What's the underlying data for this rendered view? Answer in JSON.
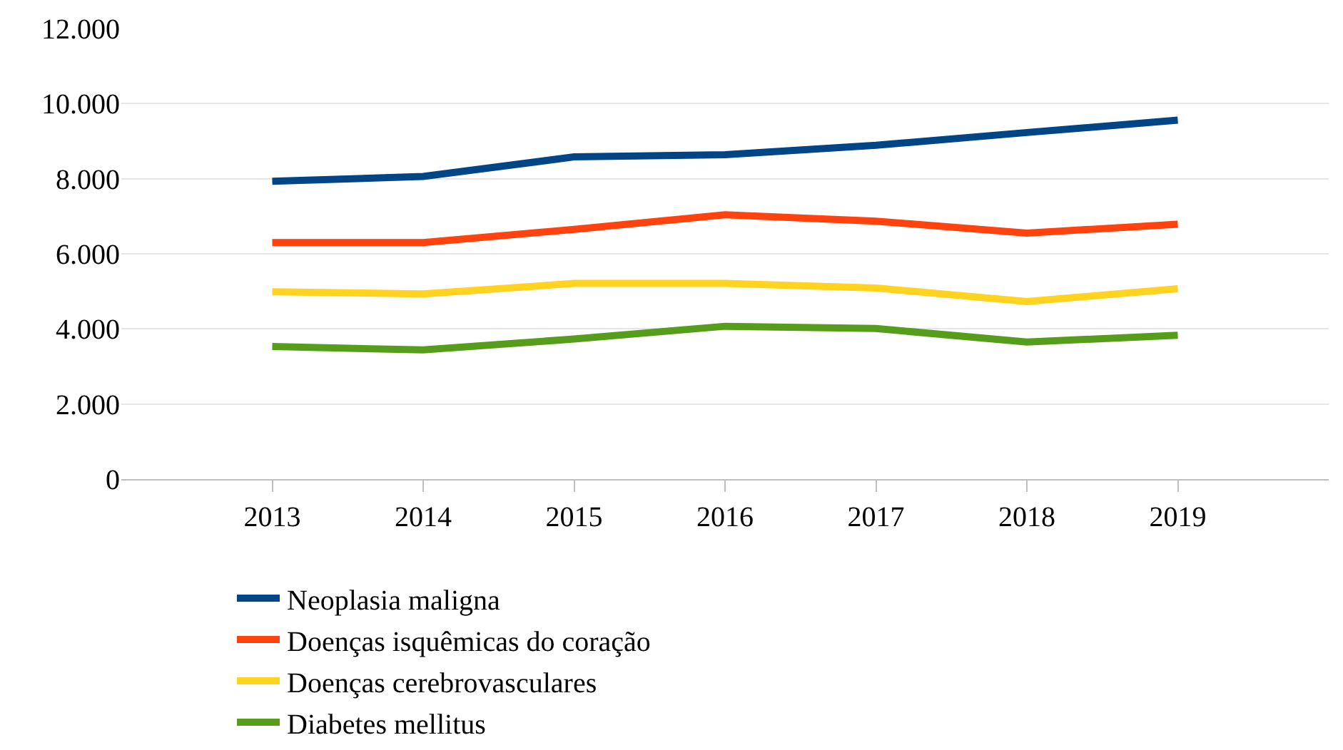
{
  "chart_data": {
    "type": "line",
    "categories": [
      "2013",
      "2014",
      "2015",
      "2016",
      "2017",
      "2018",
      "2019"
    ],
    "series": [
      {
        "name": "Neoplasia maligna",
        "color": "#004586",
        "values": [
          7930,
          8060,
          8580,
          8640,
          8890,
          9230,
          9560
        ]
      },
      {
        "name": "Doenças isquêmicas do coração",
        "color": "#ff420e",
        "values": [
          6300,
          6300,
          6650,
          7040,
          6870,
          6550,
          6790
        ]
      },
      {
        "name": "Doenças cerebrovasculares",
        "color": "#ffd320",
        "values": [
          4990,
          4930,
          5210,
          5210,
          5090,
          4730,
          5070
        ]
      },
      {
        "name": "Diabetes mellitus",
        "color": "#579d1c",
        "values": [
          3530,
          3440,
          3730,
          4070,
          4010,
          3650,
          3830
        ]
      }
    ],
    "ylim": [
      0,
      12000
    ],
    "yticks": [
      {
        "value": 0,
        "label": "0"
      },
      {
        "value": 2000,
        "label": "2.000"
      },
      {
        "value": 4000,
        "label": "4.000"
      },
      {
        "value": 6000,
        "label": "6.000"
      },
      {
        "value": 8000,
        "label": "8.000"
      },
      {
        "value": 10000,
        "label": "10.000"
      },
      {
        "value": 12000,
        "label": "12.000"
      }
    ],
    "grid": "y",
    "legend": "bottom",
    "marker": "none",
    "line_style": "solid"
  }
}
